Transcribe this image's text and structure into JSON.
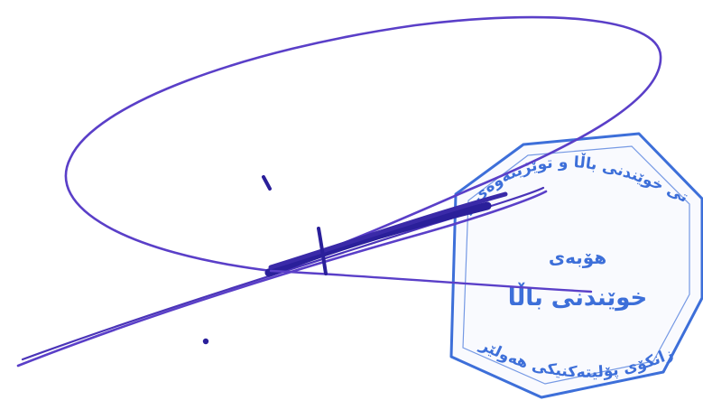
{
  "document": {
    "kind": "signature-and-stamp",
    "background_color": "#ffffff"
  },
  "signature": {
    "ink_color": "#5a3fc8",
    "ink_dark_color": "#2a1f9a"
  },
  "stamp": {
    "shape": "octagon",
    "ink_color": "#3d6fd9",
    "outer_ring_text": "وەزارەتی خوێندنی باڵا و توێژینەوەی زانستی",
    "center_lines": [
      "هۆبەی",
      "خوێندنی باڵا"
    ],
    "bottom_ring_text": "زانکۆی پۆلیتەکنیکی هەولێر"
  }
}
